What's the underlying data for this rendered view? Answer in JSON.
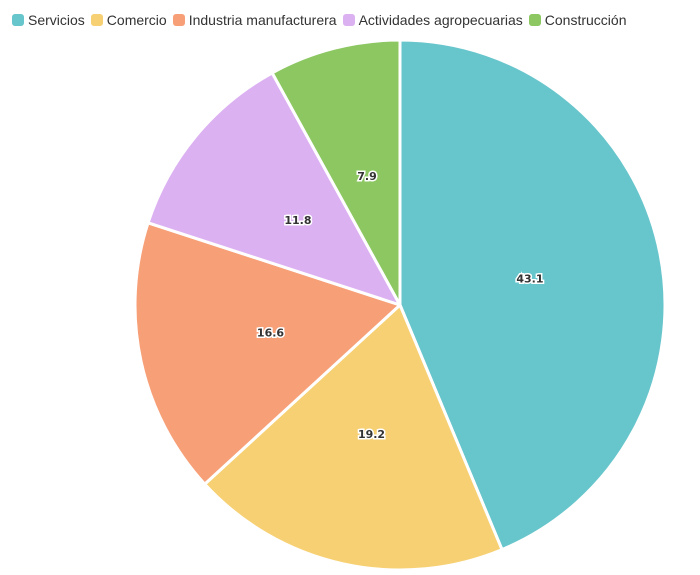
{
  "chart_data": {
    "type": "pie",
    "title": "",
    "categories": [
      "Servicios",
      "Comercio",
      "Industria manufacturera",
      "Actividades agropecuarias",
      "Construcción"
    ],
    "values": [
      43.1,
      19.2,
      16.6,
      11.8,
      7.9
    ],
    "value_labels": [
      "43.1",
      "19.2",
      "16.6",
      "11.8",
      "7.9"
    ],
    "colors": [
      "#67C5CC",
      "#F6D073",
      "#F79F77",
      "#DCB1F2",
      "#8CC762"
    ],
    "legend": "top-left",
    "start_angle": "12 o'clock, clockwise"
  }
}
